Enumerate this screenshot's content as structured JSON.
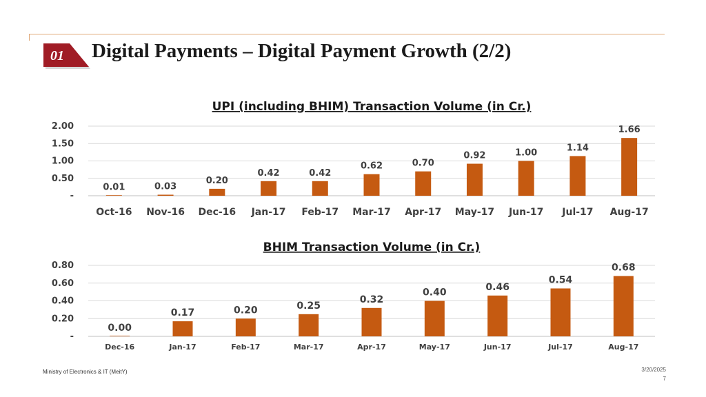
{
  "slide": {
    "number": "01",
    "title": "Digital Payments – Digital Payment Growth (2/2)",
    "footer_left": "Ministry of Electronics & IT (MeitY)",
    "date": "3/20/2025",
    "page": "7",
    "accent_color": "#a01c25",
    "bar_color": "#c55a11"
  },
  "chart_data": [
    {
      "type": "bar",
      "title": "UPI (including BHIM) Transaction Volume (in Cr.)",
      "categories": [
        "Oct-16",
        "Nov-16",
        "Dec-16",
        "Jan-17",
        "Feb-17",
        "Mar-17",
        "Apr-17",
        "May-17",
        "Jun-17",
        "Jul-17",
        "Aug-17"
      ],
      "values": [
        0.01,
        0.03,
        0.2,
        0.42,
        0.42,
        0.62,
        0.7,
        0.92,
        1.0,
        1.14,
        1.66
      ],
      "value_labels": [
        "0.01",
        "0.03",
        "0.20",
        "0.42",
        "0.42",
        "0.62",
        "0.70",
        "0.92",
        "1.00",
        "1.14",
        "1.66"
      ],
      "yticks": [
        "-",
        "0.50",
        "1.00",
        "1.50",
        "2.00"
      ],
      "ylim": [
        0,
        2
      ],
      "grid": true,
      "legend": "none"
    },
    {
      "type": "bar",
      "title": "BHIM Transaction Volume (in Cr.)",
      "categories": [
        "Dec-16",
        "Jan-17",
        "Feb-17",
        "Mar-17",
        "Apr-17",
        "May-17",
        "Jun-17",
        "Jul-17",
        "Aug-17"
      ],
      "values": [
        0.0,
        0.17,
        0.2,
        0.25,
        0.32,
        0.4,
        0.46,
        0.54,
        0.68
      ],
      "value_labels": [
        "0.00",
        "0.17",
        "0.20",
        "0.25",
        "0.32",
        "0.40",
        "0.46",
        "0.54",
        "0.68"
      ],
      "yticks": [
        "-",
        "0.20",
        "0.40",
        "0.60",
        "0.80"
      ],
      "ylim": [
        0,
        0.8
      ],
      "grid": true,
      "legend": "none"
    }
  ]
}
